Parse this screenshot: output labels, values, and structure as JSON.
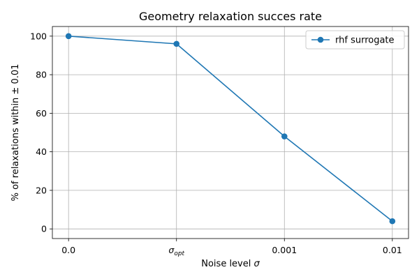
{
  "chart_data": {
    "type": "line",
    "title": "Geometry relaxation succes rate",
    "xlabel": "Noise level σ",
    "ylabel": "% of relaxations within ± 0.01",
    "categories": [
      "0.0",
      "σopt",
      "0.001",
      "0.01"
    ],
    "series": [
      {
        "name": "rhf surrogate",
        "values": [
          100,
          96,
          48,
          4
        ]
      }
    ],
    "ylim": [
      0,
      100
    ],
    "y_ticks": [
      0,
      20,
      40,
      60,
      80,
      100
    ],
    "grid": true,
    "legend_position": "top-right",
    "colors": {
      "series": "#1f77b4",
      "grid": "#b0b0b0",
      "axis": "#000000"
    }
  }
}
